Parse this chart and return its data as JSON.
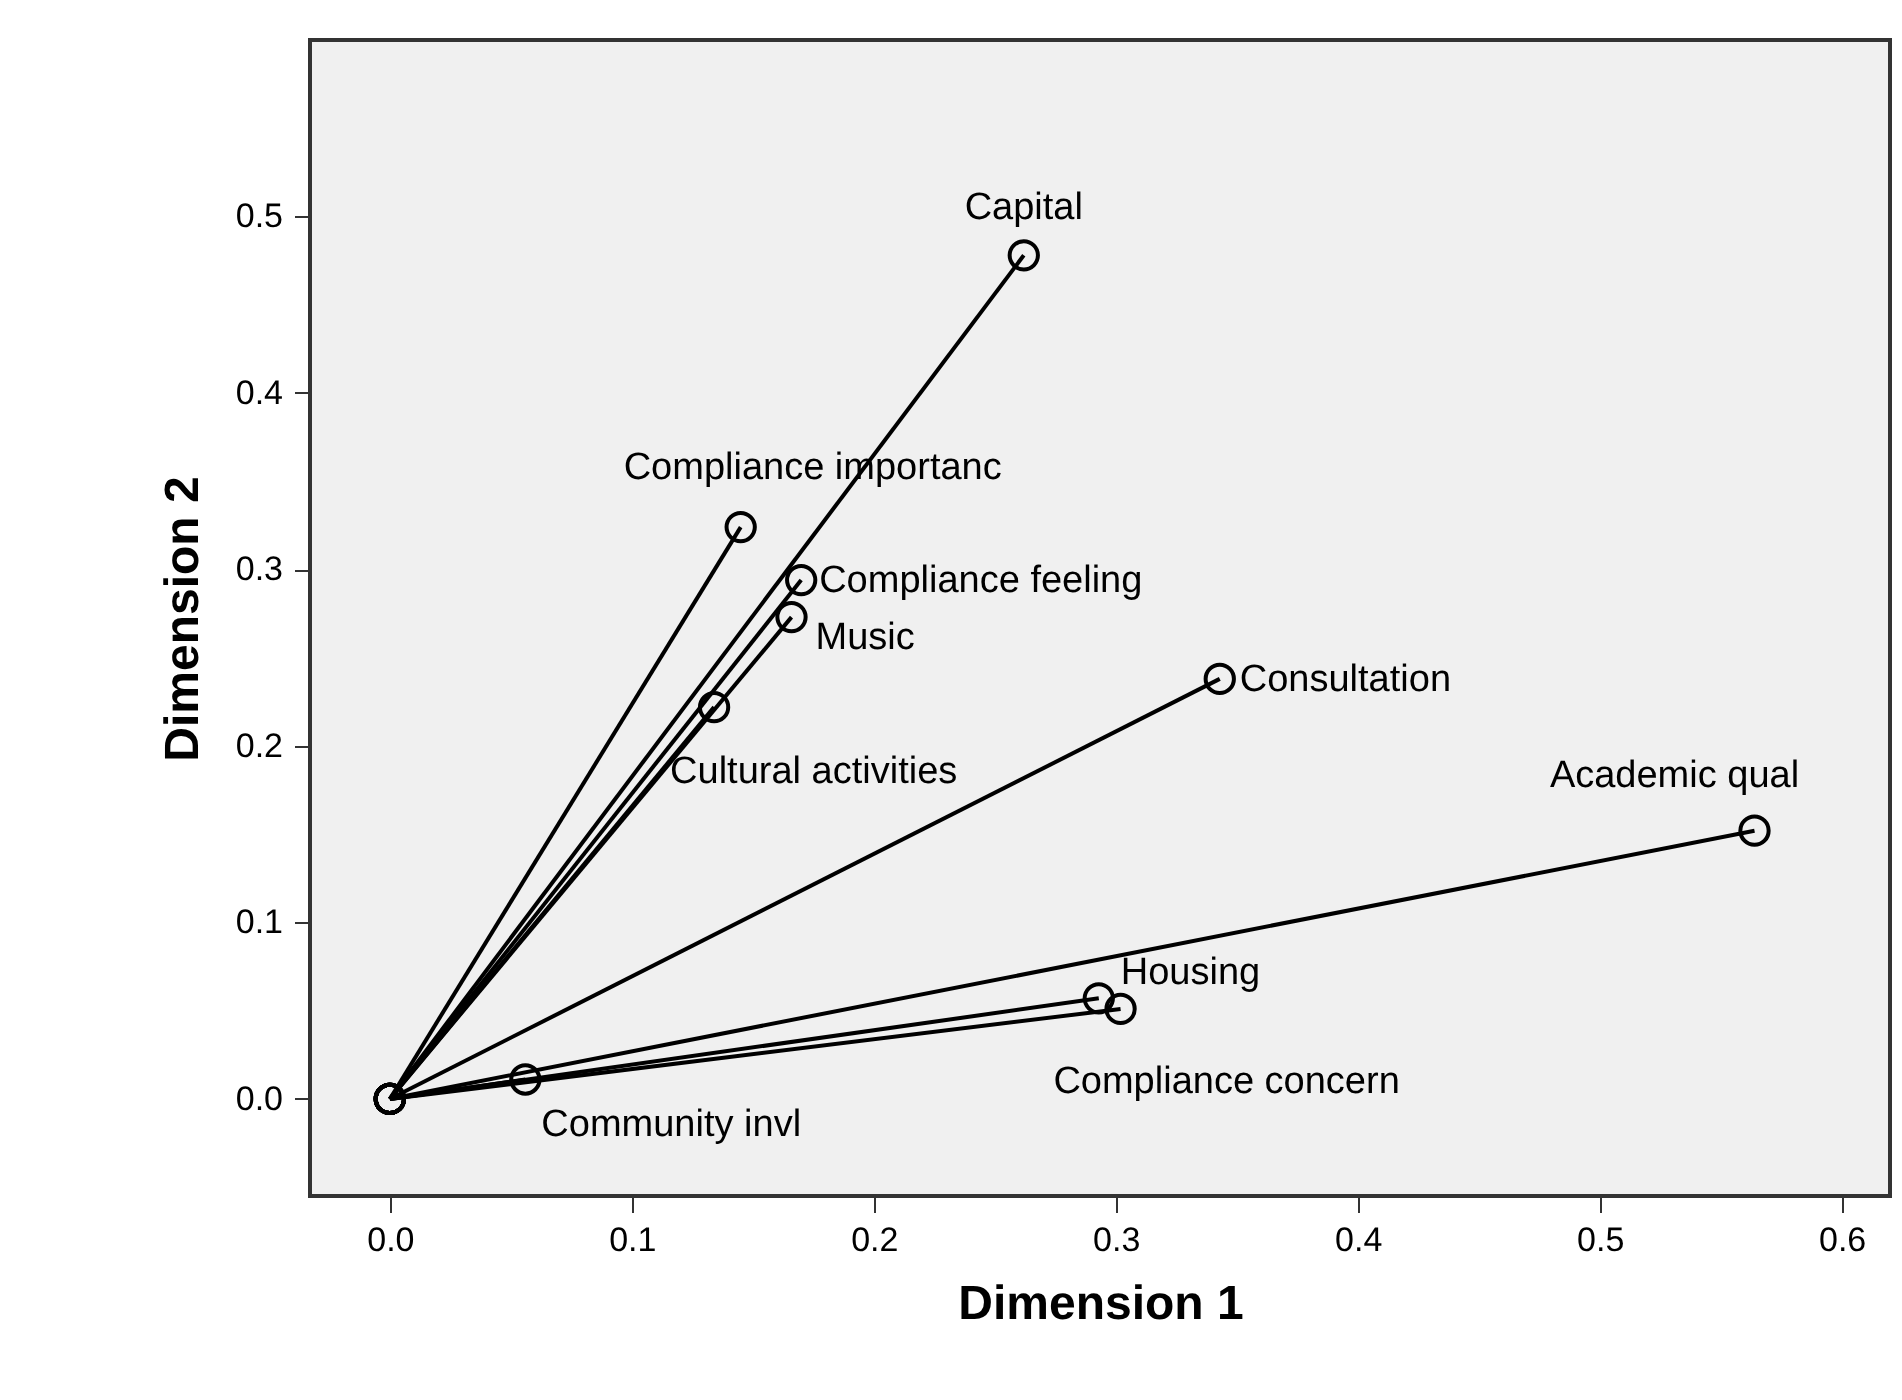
{
  "chart_data": {
    "type": "line",
    "xlabel": "Dimension 1",
    "ylabel": "Dimension 2",
    "xlim": [
      -0.033,
      0.62
    ],
    "ylim": [
      -0.055,
      0.6
    ],
    "xticks": [
      {
        "value": 0,
        "label": "0.0"
      },
      0.1,
      0.2,
      0.3,
      0.4,
      0.5,
      0.6
    ],
    "yticks": [
      {
        "value": 0,
        "label": "0.0"
      },
      0.1,
      0.2,
      0.3,
      0.4,
      0.5
    ],
    "grid": false,
    "marker": "circle",
    "line_style": "solid",
    "series": [
      {
        "name": "Capital",
        "color": "#000000",
        "x": [
          0,
          0.262
        ],
        "values": [
          0,
          0.478
        ]
      },
      {
        "name": "Compliance importanc",
        "color": "#000000",
        "x": [
          0,
          0.145
        ],
        "values": [
          0,
          0.324
        ]
      },
      {
        "name": "Music",
        "color": "#000000",
        "x": [
          0,
          0.166
        ],
        "values": [
          0,
          0.273
        ]
      },
      {
        "name": "Compliance feeling",
        "color": "#000000",
        "x": [
          0,
          0.17
        ],
        "values": [
          0,
          0.294
        ]
      },
      {
        "name": "Cultural activities",
        "color": "#000000",
        "x": [
          0,
          0.134
        ],
        "values": [
          0,
          0.222
        ]
      },
      {
        "name": "Consultation",
        "color": "#000000",
        "x": [
          0,
          0.343
        ],
        "values": [
          0,
          0.238
        ]
      },
      {
        "name": "Academic qual",
        "color": "#000000",
        "x": [
          0,
          0.564
        ],
        "values": [
          0,
          0.152
        ]
      },
      {
        "name": "Housing",
        "color": "#000000",
        "x": [
          0,
          0.293
        ],
        "values": [
          0,
          0.057
        ]
      },
      {
        "name": "Compliance concern",
        "color": "#000000",
        "x": [
          0,
          0.302
        ],
        "values": [
          0,
          0.051
        ]
      },
      {
        "name": "Community invl",
        "color": "#000000",
        "x": [
          0,
          0.056
        ],
        "values": [
          0,
          0.011
        ]
      }
    ]
  }
}
